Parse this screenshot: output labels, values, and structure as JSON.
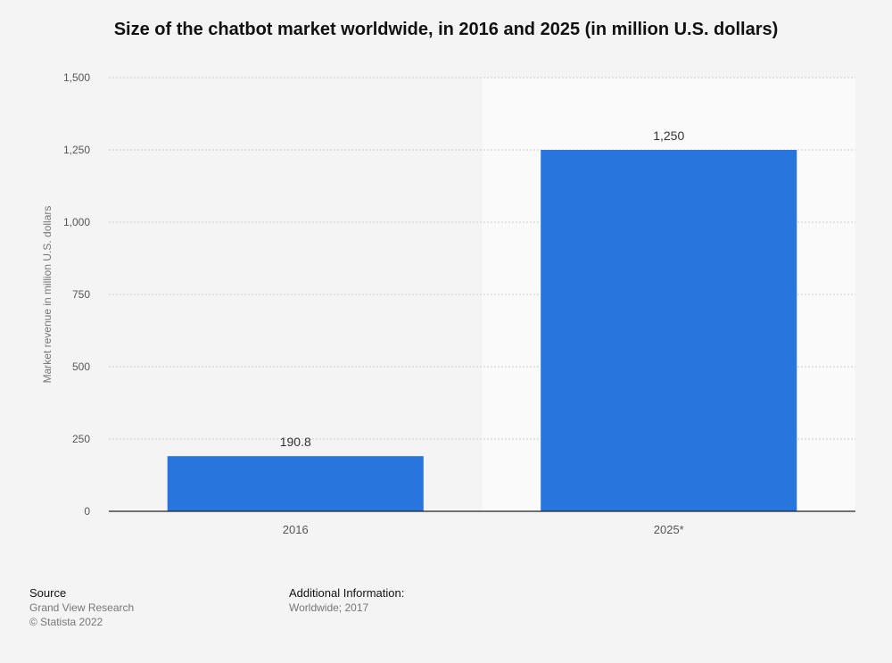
{
  "chart_data": {
    "type": "bar",
    "title": "Size of the chatbot market worldwide, in 2016 and 2025 (in million U.S. dollars)",
    "categories": [
      "2016",
      "2025*"
    ],
    "values": [
      190.8,
      1250
    ],
    "value_labels": [
      "190.8",
      "1,250"
    ],
    "xlabel": "",
    "ylabel": "Market revenue in million U.S. dollars",
    "ylim": [
      0,
      1500
    ],
    "yticks": [
      {
        "value": 0,
        "label": "0"
      },
      {
        "value": 250,
        "label": "250"
      },
      {
        "value": 500,
        "label": "500"
      },
      {
        "value": 750,
        "label": "750"
      },
      {
        "value": 1000,
        "label": "1,000"
      },
      {
        "value": 1250,
        "label": "1,250"
      },
      {
        "value": 1500,
        "label": "1,500"
      }
    ],
    "grid": true,
    "forecast_shaded_category": "2025*",
    "bar_color": "#2876dd",
    "forecast_band_color": "#fafafa",
    "gridline_color": "#cccccc"
  },
  "footer": {
    "source_heading": "Source",
    "source_lines": [
      "Grand View Research",
      "© Statista 2022"
    ],
    "info_heading": "Additional Information:",
    "info_lines": [
      "Worldwide; 2017"
    ]
  }
}
